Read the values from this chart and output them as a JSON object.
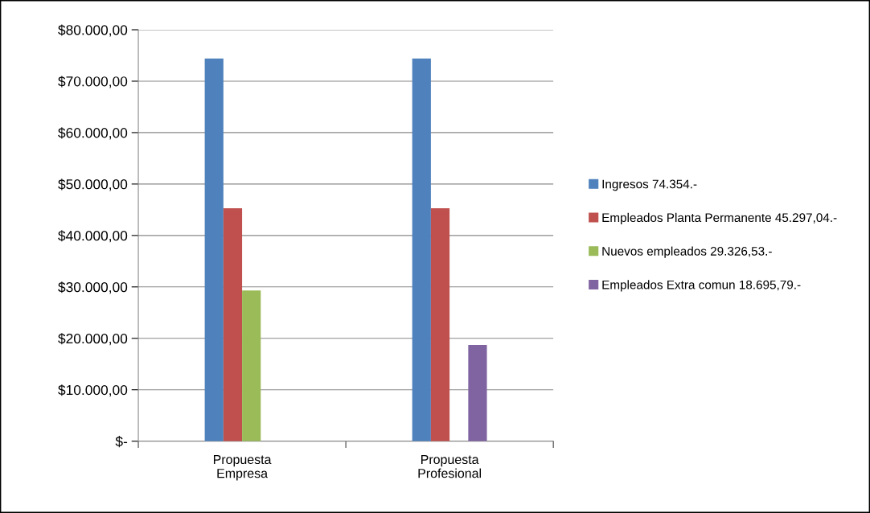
{
  "chart_data": {
    "type": "bar",
    "categories": [
      "Propuesta\nEmpresa",
      "Propuesta\nProfesional"
    ],
    "series": [
      {
        "name": "Ingresos 74.354.-",
        "color": "#4f81bd",
        "values": [
          74400,
          74400
        ]
      },
      {
        "name": "Empleados Planta Permanente 45.297,04.-",
        "color": "#c0504d",
        "values": [
          45300,
          45300
        ]
      },
      {
        "name": "Nuevos empleados 29.326,53.-",
        "color": "#9bbb59",
        "values": [
          29300,
          null
        ]
      },
      {
        "name": "Empleados Extra comun 18.695,79.-",
        "color": "#8064a2",
        "values": [
          null,
          18700
        ]
      }
    ],
    "ylim": [
      0,
      80000
    ],
    "yticks": [
      {
        "value": 0,
        "label": "$-"
      },
      {
        "value": 10000,
        "label": "$10.000,00"
      },
      {
        "value": 20000,
        "label": "$20.000,00"
      },
      {
        "value": 30000,
        "label": "$30.000,00"
      },
      {
        "value": 40000,
        "label": "$40.000,00"
      },
      {
        "value": 50000,
        "label": "$50.000,00"
      },
      {
        "value": 60000,
        "label": "$60.000,00"
      },
      {
        "value": 70000,
        "label": "$70.000,00"
      },
      {
        "value": 80000,
        "label": "$80.000,00"
      }
    ],
    "grid": "y",
    "legend": "right"
  }
}
